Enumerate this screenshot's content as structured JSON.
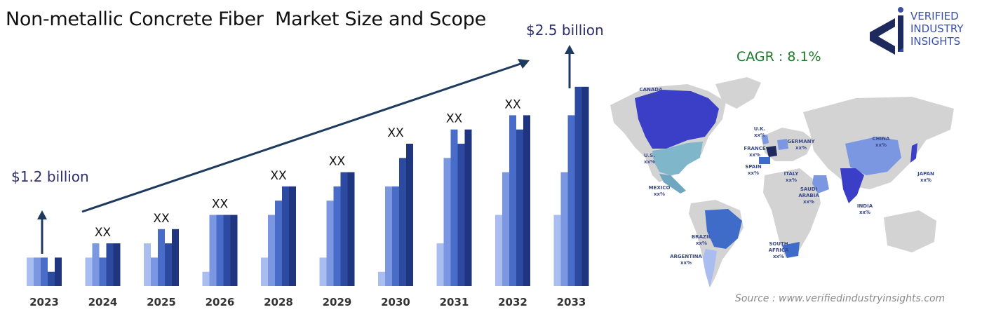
{
  "title": "Non-metallic Concrete Fiber  Market Size and Scope",
  "cagr": "CAGR : 8.1%",
  "source": "Source : www.verifiedindustryinsights.com",
  "logo": {
    "line1": "VERIFIED",
    "line2": "INDUSTRY",
    "line3": "INSIGHTS"
  },
  "colors": {
    "bar1": "#a9bdf0",
    "bar2": "#7b97e2",
    "bar3": "#4a6cc9",
    "bar4": "#2c4aa0",
    "bar5": "#1f3580",
    "arrow": "#1e3a5f",
    "map_land": "#d3d3d3"
  },
  "chart_data": {
    "type": "bar",
    "categories": [
      "2023",
      "2024",
      "2025",
      "2026",
      "2028",
      "2029",
      "2030",
      "2031",
      "2032",
      "2033"
    ],
    "series": [
      {
        "values": [
          2,
          2,
          3,
          1,
          2,
          2,
          1,
          3,
          5,
          5
        ]
      },
      {
        "values": [
          2,
          3,
          2,
          5,
          5,
          6,
          7,
          9,
          8,
          8
        ]
      },
      {
        "values": [
          2,
          2,
          4,
          5,
          6,
          7,
          7,
          11,
          12,
          12
        ]
      },
      {
        "values": [
          1,
          3,
          3,
          5,
          7,
          8,
          9,
          10,
          11,
          14
        ]
      },
      {
        "values": [
          2,
          3,
          4,
          5,
          7,
          8,
          10,
          11,
          12,
          14
        ]
      }
    ],
    "value_labels": [
      "",
      "XX",
      "XX",
      "XX",
      "XX",
      "XX",
      "XX",
      "XX",
      "XX",
      ""
    ],
    "start_label": "$1.2 billion",
    "end_label": "$2.5 billion",
    "ylim": [
      0,
      14
    ]
  },
  "map_labels": [
    {
      "name": "CANADA",
      "value": "xx%"
    },
    {
      "name": "U.S.",
      "value": "xx%"
    },
    {
      "name": "MEXICO",
      "value": "xx%"
    },
    {
      "name": "BRAZIL",
      "value": "xx%"
    },
    {
      "name": "ARGENTINA",
      "value": "xx%"
    },
    {
      "name": "U.K.",
      "value": "xx%"
    },
    {
      "name": "FRANCE",
      "value": "xx%"
    },
    {
      "name": "SPAIN",
      "value": "xx%"
    },
    {
      "name": "GERMANY",
      "value": "xx%"
    },
    {
      "name": "ITALY",
      "value": "xx%"
    },
    {
      "name": "SAUDI",
      "value": "ARABIA"
    },
    {
      "name": "SOUTH",
      "value": "AFRICA"
    },
    {
      "name": "CHINA",
      "value": "xx%"
    },
    {
      "name": "INDIA",
      "value": "xx%"
    },
    {
      "name": "JAPAN",
      "value": "xx%"
    }
  ],
  "map_extra": {
    "saudi_value": "xx%",
    "sa_value": "xx%"
  }
}
